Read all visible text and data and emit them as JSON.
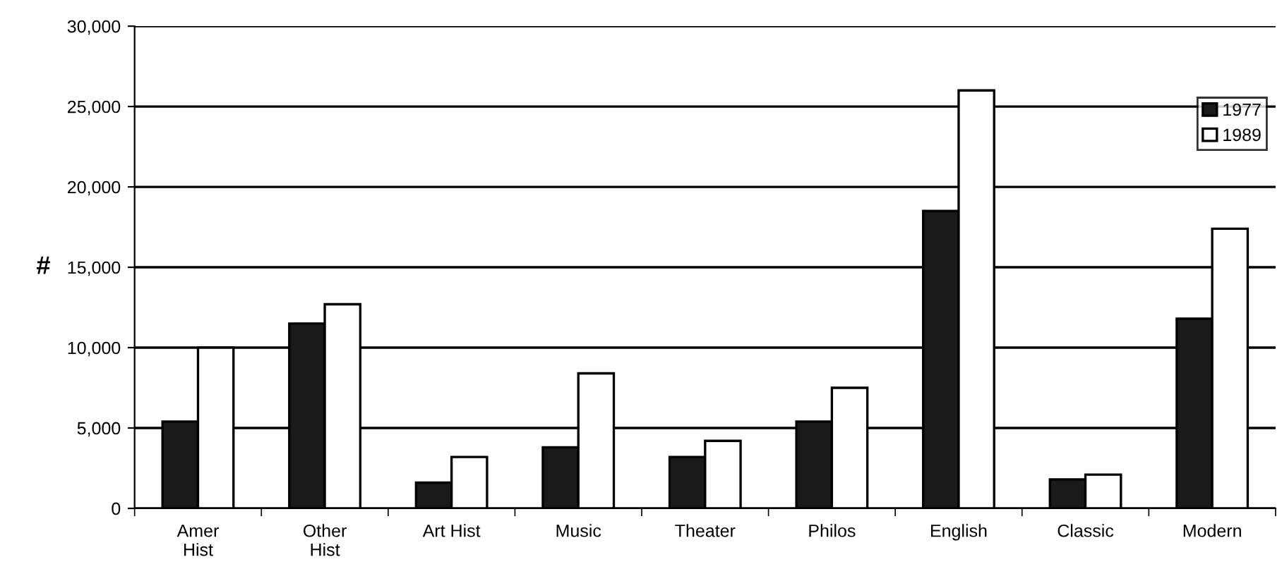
{
  "chart_data": {
    "type": "bar",
    "ylabel": "#",
    "categories": [
      "Amer\nHist",
      "Other\nHist",
      "Art Hist",
      "Music",
      "Theater",
      "Philos",
      "English",
      "Classic",
      "Modern"
    ],
    "series": [
      {
        "name": "1977",
        "color": "#1a1a1a",
        "values": [
          5400,
          11500,
          1600,
          3800,
          3200,
          5400,
          18500,
          1800,
          11800
        ]
      },
      {
        "name": "1989",
        "color": "#ffffff",
        "values": [
          10000,
          12700,
          3200,
          8400,
          4200,
          7500,
          26000,
          2100,
          17400
        ]
      }
    ],
    "ylim": [
      0,
      30000
    ],
    "yticks": [
      {
        "value": 0,
        "label": "0"
      },
      {
        "value": 5000,
        "label": "5,000"
      },
      {
        "value": 10000,
        "label": "10,000"
      },
      {
        "value": 15000,
        "label": "15,000"
      },
      {
        "value": 20000,
        "label": "20,000"
      },
      {
        "value": 25000,
        "label": "25,000"
      },
      {
        "value": 30000,
        "label": "30,000"
      }
    ],
    "grid": "y",
    "legend": "top right"
  }
}
